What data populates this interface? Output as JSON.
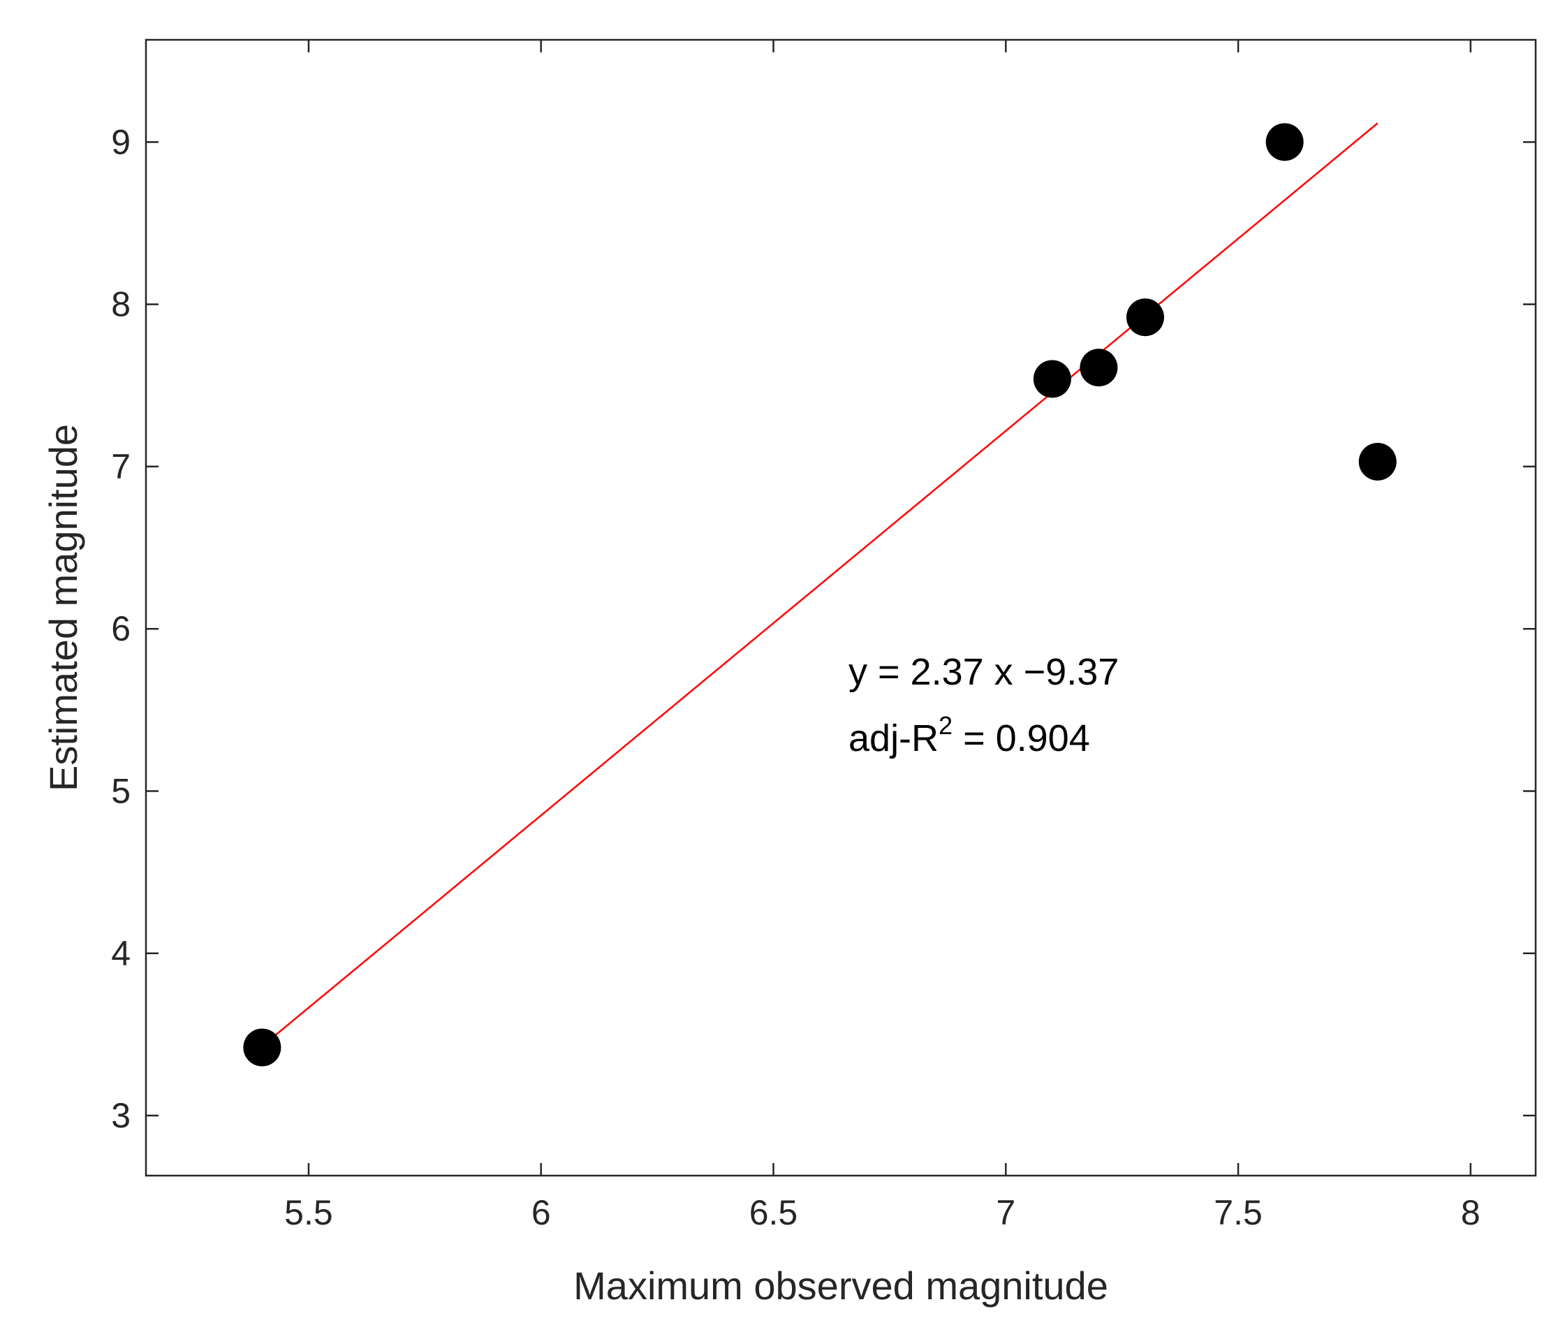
{
  "chart_data": {
    "type": "scatter",
    "title": "",
    "xlabel": "Maximum observed magnitude",
    "ylabel": "Estimated magnitude",
    "xlim": [
      5.15,
      8.14
    ],
    "ylim": [
      2.63,
      9.63
    ],
    "xticks": [
      5.5,
      6,
      6.5,
      7,
      7.5,
      8
    ],
    "yticks": [
      3,
      4,
      5,
      6,
      7,
      8,
      9
    ],
    "xtick_labels": [
      "5.5",
      "6",
      "6.5",
      "7",
      "7.5",
      "8"
    ],
    "ytick_labels": [
      "3",
      "4",
      "5",
      "6",
      "7",
      "8",
      "9"
    ],
    "grid": false,
    "series": [
      {
        "points": [
          {
            "x": 5.4,
            "y": 3.42
          },
          {
            "x": 7.1,
            "y": 7.54
          },
          {
            "x": 7.2,
            "y": 7.61
          },
          {
            "x": 7.3,
            "y": 7.92
          },
          {
            "x": 7.6,
            "y": 9.0
          },
          {
            "x": 7.8,
            "y": 7.03
          }
        ],
        "color": "#000000"
      }
    ],
    "fit_line": {
      "slope": 2.37,
      "intercept": -9.37,
      "x_range": [
        5.4,
        7.8
      ],
      "color": "#ff0000"
    },
    "annotations": {
      "equation": "y = 2.37 x −9.37",
      "r2_prefix": "adj-R",
      "r2_superscript": "2",
      "r2_suffix": " = 0.904"
    }
  }
}
